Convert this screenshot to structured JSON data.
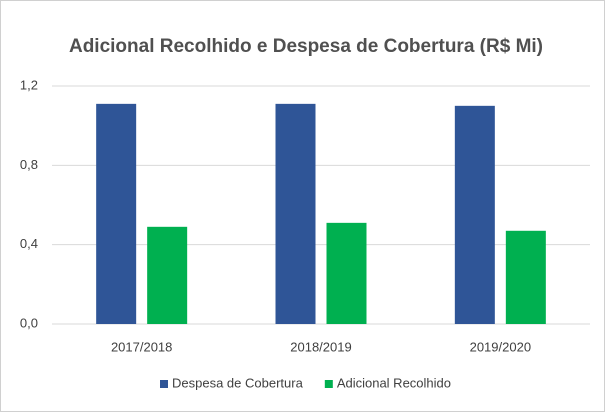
{
  "chart_data": {
    "type": "bar",
    "title": "Adicional Recolhido e Despesa de Cobertura (R$ Mi)",
    "categories": [
      "2017/2018",
      "2018/2019",
      "2019/2020"
    ],
    "series": [
      {
        "name": "Despesa de Cobertura",
        "color": "#2f5597",
        "values": [
          1.11,
          1.11,
          1.1
        ]
      },
      {
        "name": "Adicional Recolhido",
        "color": "#00b050",
        "values": [
          0.49,
          0.51,
          0.47
        ]
      }
    ],
    "ylim": [
      0,
      1.2
    ],
    "yticks": [
      {
        "value": 0,
        "label": "0,0"
      },
      {
        "value": 0.4,
        "label": "0,4"
      },
      {
        "value": 0.8,
        "label": "0,8"
      },
      {
        "value": 1.2,
        "label": "1,2"
      }
    ],
    "grid": true,
    "legend": "bottom"
  }
}
